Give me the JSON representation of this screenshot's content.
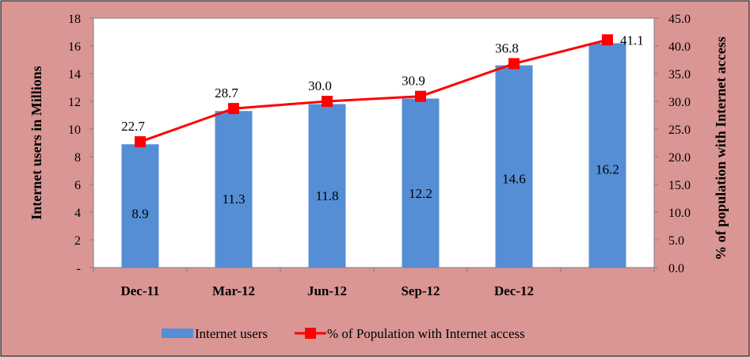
{
  "colors": {
    "background": "#D99694",
    "plot_area": "#ffffff",
    "bars": "#558ED5",
    "line": "#FF0000",
    "markers": "#FF0000",
    "frame": "#000000"
  },
  "chart_data": {
    "type": "bar",
    "categories": [
      "Dec-11",
      "Mar-12",
      "Jun-12",
      "Sep-12",
      "Dec-12",
      ""
    ],
    "series": [
      {
        "name": "Internet users",
        "type": "bar",
        "axis": "left",
        "values": [
          8.9,
          11.3,
          11.8,
          12.2,
          14.6,
          16.2
        ],
        "labels": [
          "8.9",
          "11.3",
          "11.8",
          "12.2",
          "14.6",
          "16.2"
        ]
      },
      {
        "name": "% of Population with Internet access",
        "type": "line",
        "axis": "right",
        "marker": "square",
        "values": [
          22.7,
          28.7,
          30.0,
          30.9,
          36.8,
          41.1
        ],
        "labels": [
          "22.7",
          "28.7",
          "30.0",
          "30.9",
          "36.8",
          "41.1"
        ]
      }
    ],
    "ylabel": "Internet users in Millions",
    "y2label": "% of population with Internet access",
    "ylim": [
      0,
      18
    ],
    "y2lim": [
      0,
      45
    ],
    "yticks": [
      "-",
      "2",
      "4",
      "6",
      "8",
      "10",
      "12",
      "14",
      "16",
      "18"
    ],
    "y2ticks": [
      "0.0",
      "5.0",
      "10.0",
      "15.0",
      "20.0",
      "25.0",
      "30.0",
      "35.0",
      "40.0",
      "45.0"
    ],
    "grid": false,
    "legend": "bottom"
  }
}
